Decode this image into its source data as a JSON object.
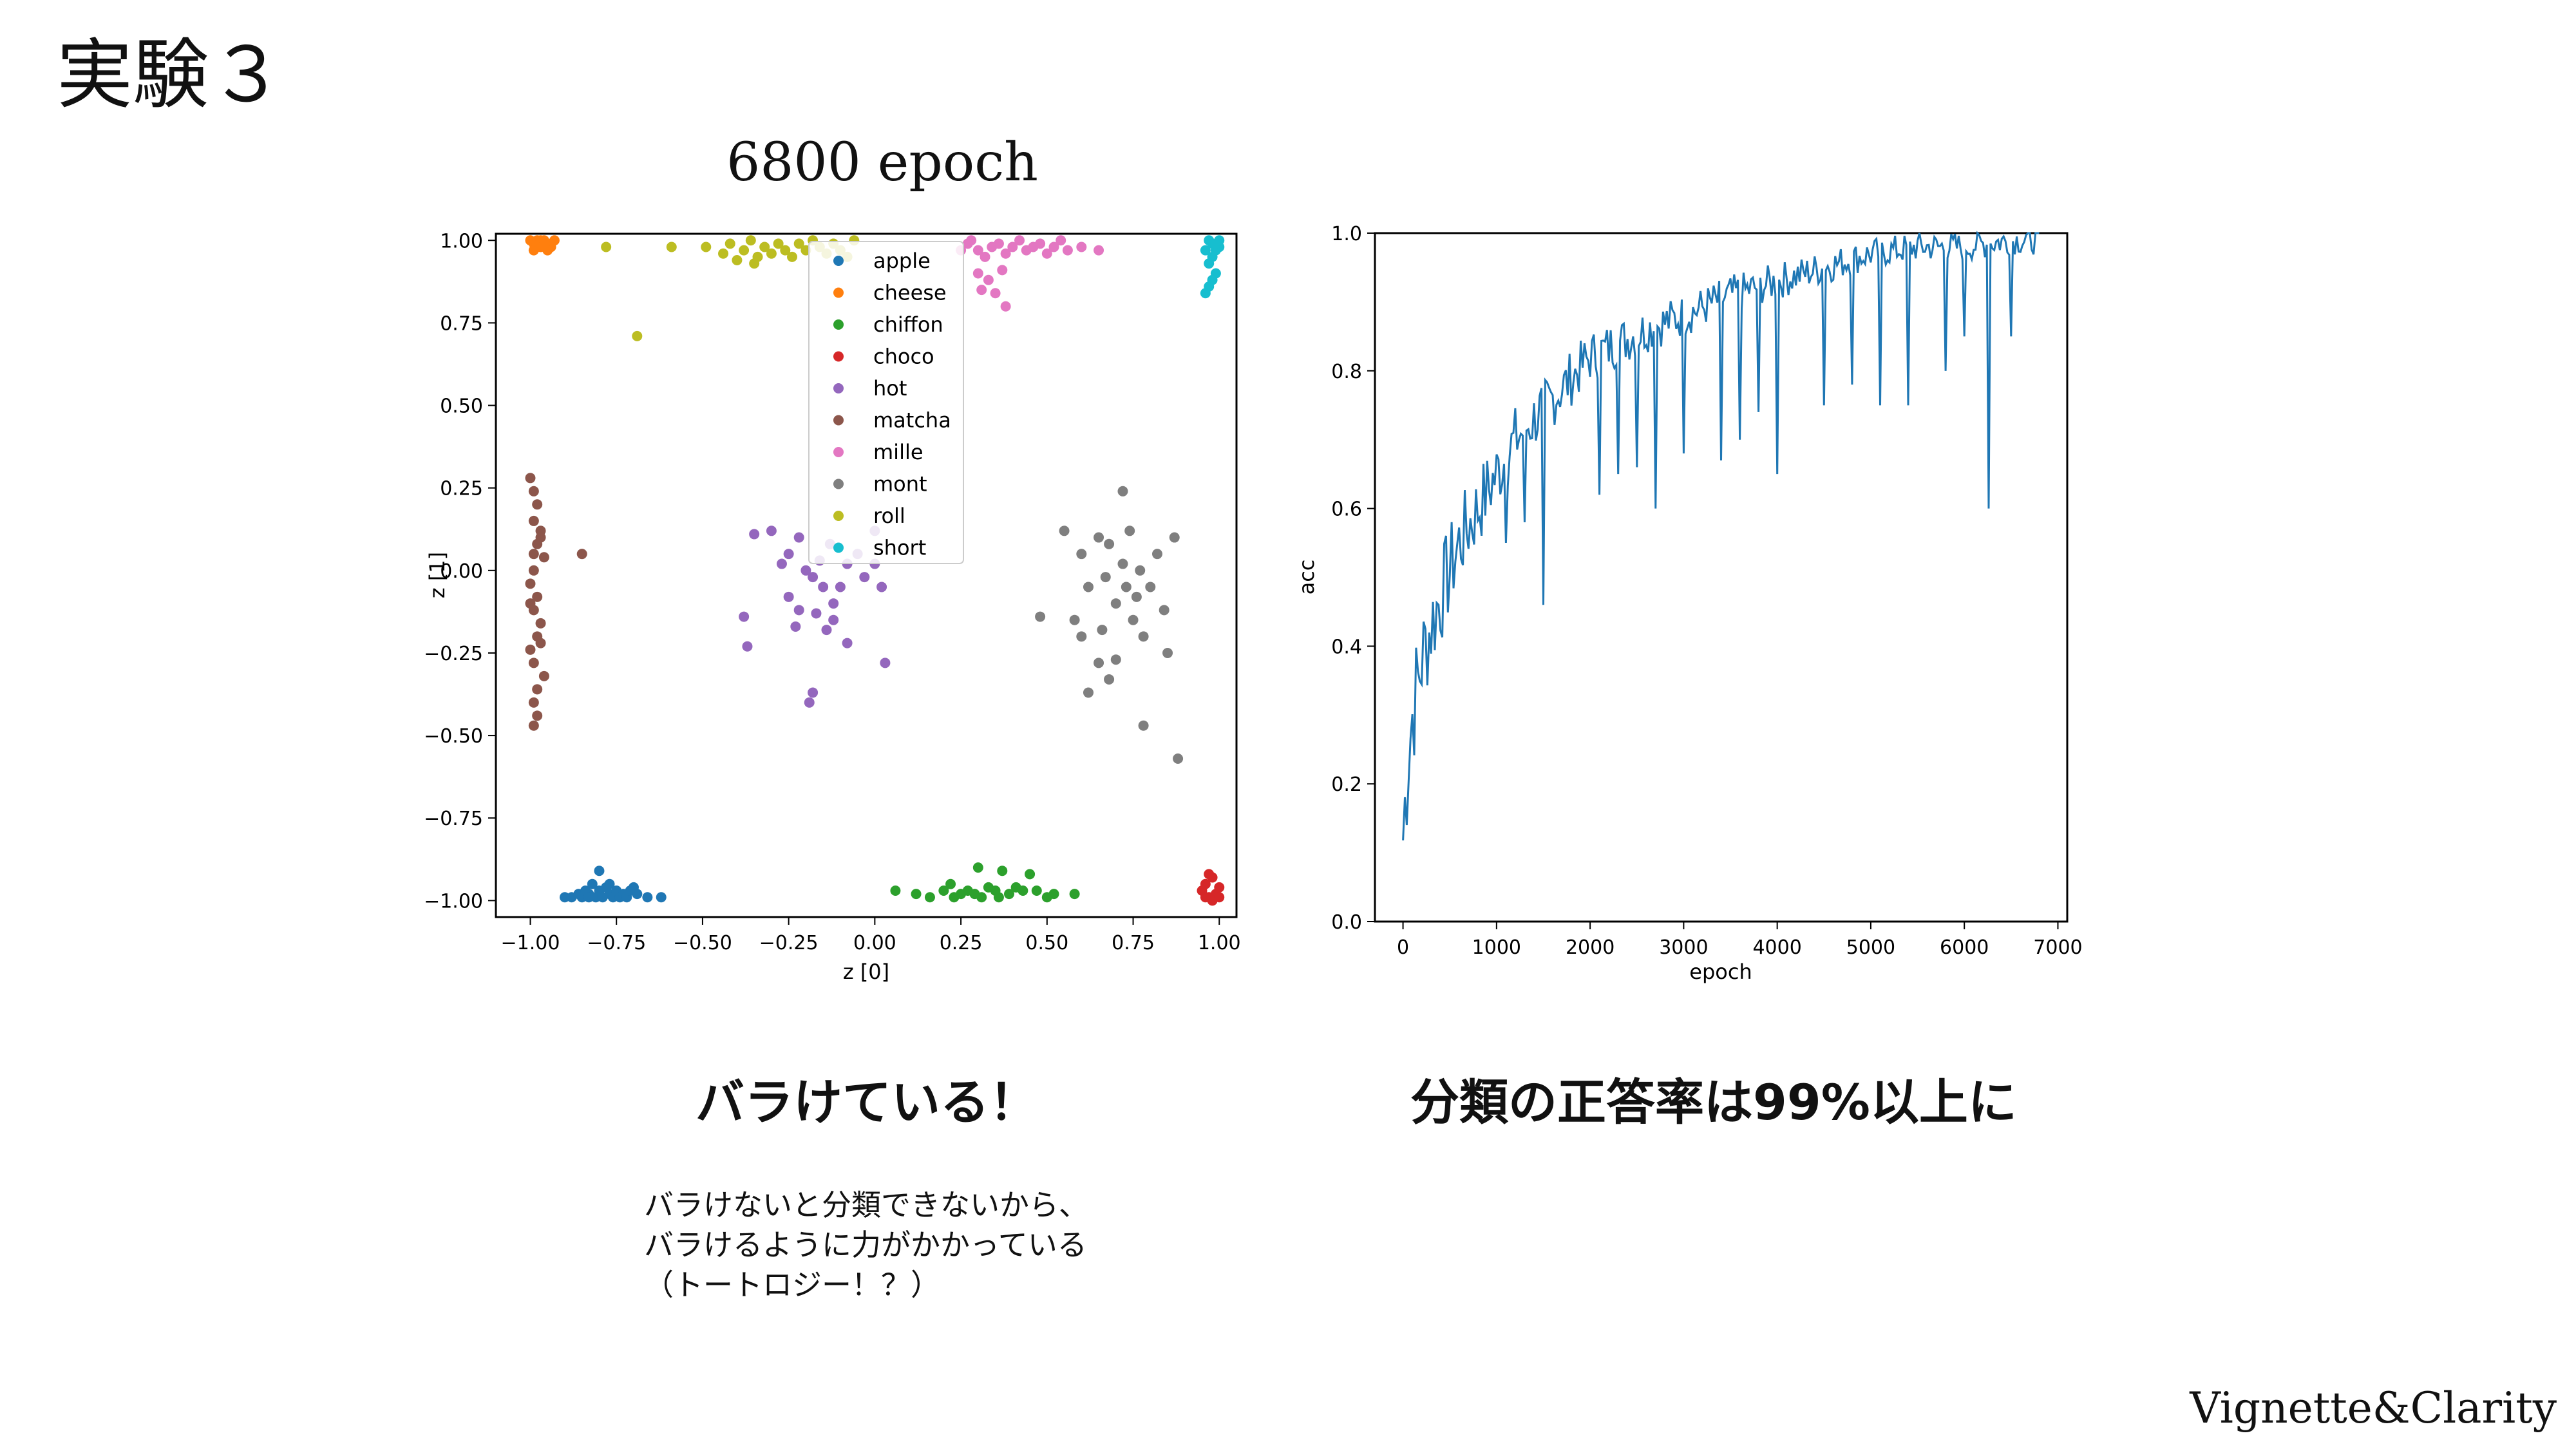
{
  "slide": {
    "title": "実験３",
    "subtitle": "6800 epoch",
    "caption_left": "バラけている！",
    "caption_right": "分類の正答率は99%以上に",
    "note_lines": [
      "バラけないと分類できないから、",
      "バラけるように力がかかっている",
      "（トートロジー！？）"
    ],
    "brand": "Vignette&Clarity"
  },
  "chart_data": [
    {
      "type": "scatter",
      "title": "",
      "xlabel": "z [0]",
      "ylabel": "z [1]",
      "xlim": [
        -1.1,
        1.05
      ],
      "ylim": [
        -1.05,
        1.02
      ],
      "xticks": [
        "−1.00",
        "−0.75",
        "−0.50",
        "−0.25",
        "0.00",
        "0.25",
        "0.50",
        "0.75",
        "1.00"
      ],
      "yticks": [
        "−1.00",
        "−0.75",
        "−0.50",
        "−0.25",
        "0.00",
        "0.25",
        "0.50",
        "0.75",
        "1.00"
      ],
      "legend_position": "top-center",
      "series": [
        {
          "name": "apple",
          "color": "#1f77b4",
          "points": [
            [
              -0.9,
              -0.99
            ],
            [
              -0.88,
              -0.99
            ],
            [
              -0.86,
              -0.98
            ],
            [
              -0.85,
              -0.99
            ],
            [
              -0.84,
              -0.97
            ],
            [
              -0.83,
              -0.98
            ],
            [
              -0.82,
              -0.95
            ],
            [
              -0.81,
              -0.99
            ],
            [
              -0.8,
              -0.97
            ],
            [
              -0.8,
              -0.91
            ],
            [
              -0.79,
              -0.99
            ],
            [
              -0.78,
              -0.96
            ],
            [
              -0.77,
              -0.98
            ],
            [
              -0.76,
              -0.99
            ],
            [
              -0.75,
              -0.97
            ],
            [
              -0.74,
              -0.99
            ],
            [
              -0.73,
              -0.98
            ],
            [
              -0.72,
              -0.99
            ],
            [
              -0.71,
              -0.97
            ],
            [
              -0.7,
              -0.96
            ],
            [
              -0.69,
              -0.98
            ],
            [
              -0.66,
              -0.99
            ],
            [
              -0.62,
              -0.99
            ],
            [
              -0.83,
              -0.99
            ],
            [
              -0.77,
              -0.95
            ]
          ]
        },
        {
          "name": "cheese",
          "color": "#ff7f0e",
          "points": [
            [
              -1.0,
              1.0
            ],
            [
              -0.99,
              0.99
            ],
            [
              -0.98,
              1.0
            ],
            [
              -0.97,
              0.98
            ],
            [
              -0.96,
              1.0
            ],
            [
              -0.95,
              0.99
            ],
            [
              -0.94,
              0.98
            ],
            [
              -0.99,
              0.97
            ],
            [
              -0.97,
              1.0
            ],
            [
              -0.95,
              0.97
            ],
            [
              -0.93,
              1.0
            ],
            [
              -0.98,
              0.98
            ]
          ]
        },
        {
          "name": "chiffon",
          "color": "#2ca02c",
          "points": [
            [
              0.06,
              -0.97
            ],
            [
              0.12,
              -0.98
            ],
            [
              0.16,
              -0.99
            ],
            [
              0.2,
              -0.97
            ],
            [
              0.22,
              -0.95
            ],
            [
              0.25,
              -0.98
            ],
            [
              0.27,
              -0.97
            ],
            [
              0.29,
              -0.98
            ],
            [
              0.31,
              -0.99
            ],
            [
              0.3,
              -0.9
            ],
            [
              0.33,
              -0.96
            ],
            [
              0.35,
              -0.97
            ],
            [
              0.37,
              -0.91
            ],
            [
              0.39,
              -0.98
            ],
            [
              0.41,
              -0.96
            ],
            [
              0.43,
              -0.97
            ],
            [
              0.45,
              -0.92
            ],
            [
              0.47,
              -0.97
            ],
            [
              0.5,
              -0.99
            ],
            [
              0.52,
              -0.98
            ],
            [
              0.58,
              -0.98
            ],
            [
              0.23,
              -0.99
            ],
            [
              0.36,
              -0.99
            ]
          ]
        },
        {
          "name": "choco",
          "color": "#d62728",
          "points": [
            [
              0.95,
              -0.97
            ],
            [
              0.96,
              -0.95
            ],
            [
              0.97,
              -0.99
            ],
            [
              0.98,
              -0.93
            ],
            [
              0.99,
              -0.98
            ],
            [
              1.0,
              -0.96
            ],
            [
              0.97,
              -0.92
            ],
            [
              0.98,
              -1.0
            ],
            [
              0.96,
              -0.99
            ],
            [
              1.0,
              -0.99
            ]
          ]
        },
        {
          "name": "hot",
          "color": "#9467bd",
          "points": [
            [
              -0.35,
              0.11
            ],
            [
              -0.3,
              0.12
            ],
            [
              -0.25,
              0.05
            ],
            [
              -0.27,
              0.02
            ],
            [
              -0.22,
              0.1
            ],
            [
              -0.2,
              0.0
            ],
            [
              -0.18,
              -0.02
            ],
            [
              -0.16,
              0.03
            ],
            [
              -0.15,
              -0.05
            ],
            [
              -0.13,
              0.08
            ],
            [
              -0.12,
              -0.1
            ],
            [
              -0.1,
              -0.05
            ],
            [
              -0.08,
              0.02
            ],
            [
              -0.05,
              0.05
            ],
            [
              -0.03,
              -0.02
            ],
            [
              0.02,
              -0.05
            ],
            [
              0.0,
              0.02
            ],
            [
              -0.38,
              -0.14
            ],
            [
              -0.37,
              -0.23
            ],
            [
              -0.23,
              -0.17
            ],
            [
              -0.18,
              -0.37
            ],
            [
              -0.19,
              -0.4
            ],
            [
              -0.08,
              -0.22
            ],
            [
              0.03,
              -0.28
            ],
            [
              -0.25,
              -0.08
            ],
            [
              -0.17,
              -0.13
            ],
            [
              -0.14,
              -0.18
            ],
            [
              0.0,
              0.12
            ],
            [
              -0.22,
              -0.12
            ],
            [
              -0.12,
              -0.15
            ]
          ]
        },
        {
          "name": "matcha",
          "color": "#8c564b",
          "points": [
            [
              -1.0,
              0.28
            ],
            [
              -0.99,
              0.24
            ],
            [
              -0.98,
              0.2
            ],
            [
              -0.99,
              0.15
            ],
            [
              -0.97,
              0.12
            ],
            [
              -0.98,
              0.08
            ],
            [
              -0.96,
              0.04
            ],
            [
              -0.99,
              0.0
            ],
            [
              -1.0,
              -0.04
            ],
            [
              -0.98,
              -0.08
            ],
            [
              -0.99,
              -0.12
            ],
            [
              -0.97,
              -0.16
            ],
            [
              -0.98,
              -0.2
            ],
            [
              -1.0,
              -0.24
            ],
            [
              -0.99,
              -0.28
            ],
            [
              -0.96,
              -0.32
            ],
            [
              -0.98,
              -0.36
            ],
            [
              -0.99,
              -0.4
            ],
            [
              -0.98,
              -0.44
            ],
            [
              -0.99,
              -0.47
            ],
            [
              -0.97,
              -0.22
            ],
            [
              -1.0,
              -0.1
            ],
            [
              -0.99,
              0.05
            ],
            [
              -0.97,
              0.1
            ],
            [
              -0.85,
              0.05
            ]
          ]
        },
        {
          "name": "mille",
          "color": "#e377c2",
          "points": [
            [
              0.25,
              0.97
            ],
            [
              0.28,
              1.0
            ],
            [
              0.3,
              0.97
            ],
            [
              0.32,
              0.95
            ],
            [
              0.34,
              0.98
            ],
            [
              0.36,
              0.99
            ],
            [
              0.38,
              0.96
            ],
            [
              0.4,
              0.98
            ],
            [
              0.42,
              1.0
            ],
            [
              0.44,
              0.97
            ],
            [
              0.46,
              0.98
            ],
            [
              0.48,
              0.99
            ],
            [
              0.5,
              0.96
            ],
            [
              0.52,
              0.98
            ],
            [
              0.54,
              1.0
            ],
            [
              0.56,
              0.97
            ],
            [
              0.3,
              0.9
            ],
            [
              0.31,
              0.85
            ],
            [
              0.35,
              0.84
            ],
            [
              0.37,
              0.91
            ],
            [
              0.38,
              0.8
            ],
            [
              0.6,
              0.98
            ],
            [
              0.65,
              0.97
            ],
            [
              0.33,
              0.88
            ],
            [
              0.27,
              0.99
            ]
          ]
        },
        {
          "name": "mont",
          "color": "#7f7f7f",
          "points": [
            [
              0.55,
              0.12
            ],
            [
              0.6,
              0.05
            ],
            [
              0.62,
              -0.05
            ],
            [
              0.65,
              0.1
            ],
            [
              0.67,
              -0.02
            ],
            [
              0.68,
              0.08
            ],
            [
              0.7,
              -0.1
            ],
            [
              0.72,
              0.02
            ],
            [
              0.74,
              0.12
            ],
            [
              0.75,
              -0.15
            ],
            [
              0.77,
              0.0
            ],
            [
              0.78,
              -0.2
            ],
            [
              0.8,
              -0.05
            ],
            [
              0.82,
              0.05
            ],
            [
              0.84,
              -0.12
            ],
            [
              0.85,
              -0.25
            ],
            [
              0.87,
              0.1
            ],
            [
              0.65,
              -0.28
            ],
            [
              0.68,
              -0.33
            ],
            [
              0.62,
              -0.37
            ],
            [
              0.6,
              -0.2
            ],
            [
              0.58,
              -0.15
            ],
            [
              0.72,
              0.24
            ],
            [
              0.78,
              -0.47
            ],
            [
              0.88,
              -0.57
            ],
            [
              0.48,
              -0.14
            ],
            [
              0.7,
              -0.27
            ],
            [
              0.76,
              -0.08
            ],
            [
              0.66,
              -0.18
            ],
            [
              0.73,
              -0.05
            ]
          ]
        },
        {
          "name": "roll",
          "color": "#bcbd22",
          "points": [
            [
              -0.78,
              0.98
            ],
            [
              -0.59,
              0.98
            ],
            [
              -0.49,
              0.98
            ],
            [
              -0.44,
              0.96
            ],
            [
              -0.42,
              0.99
            ],
            [
              -0.4,
              0.94
            ],
            [
              -0.38,
              0.97
            ],
            [
              -0.36,
              1.0
            ],
            [
              -0.34,
              0.95
            ],
            [
              -0.32,
              0.98
            ],
            [
              -0.3,
              0.96
            ],
            [
              -0.28,
              0.99
            ],
            [
              -0.26,
              0.97
            ],
            [
              -0.24,
              0.95
            ],
            [
              -0.22,
              0.99
            ],
            [
              -0.2,
              0.97
            ],
            [
              -0.18,
              1.0
            ],
            [
              -0.16,
              0.98
            ],
            [
              -0.14,
              0.96
            ],
            [
              -0.12,
              0.99
            ],
            [
              -0.1,
              0.97
            ],
            [
              -0.08,
              0.95
            ],
            [
              -0.06,
              1.0
            ],
            [
              -0.69,
              0.71
            ],
            [
              -0.35,
              0.93
            ]
          ]
        },
        {
          "name": "short",
          "color": "#17becf",
          "points": [
            [
              0.97,
              1.0
            ],
            [
              0.98,
              0.99
            ],
            [
              0.99,
              0.97
            ],
            [
              1.0,
              0.98
            ],
            [
              0.98,
              0.95
            ],
            [
              0.97,
              0.93
            ],
            [
              0.99,
              0.9
            ],
            [
              0.98,
              0.88
            ],
            [
              0.97,
              0.86
            ],
            [
              0.96,
              0.84
            ],
            [
              0.99,
              0.99
            ],
            [
              1.0,
              1.0
            ],
            [
              0.96,
              0.97
            ]
          ]
        }
      ]
    },
    {
      "type": "line",
      "title": "",
      "xlabel": "epoch",
      "ylabel": "acc",
      "xlim": [
        -300,
        7100
      ],
      "ylim": [
        0.0,
        1.0
      ],
      "xticks": [
        0,
        1000,
        2000,
        3000,
        4000,
        5000,
        6000,
        7000
      ],
      "yticks": [
        "0.0",
        "0.2",
        "0.4",
        "0.6",
        "0.8",
        "1.0"
      ],
      "color": "#1f77b4",
      "series": [
        {
          "x": [
            0,
            50,
            100,
            200,
            300,
            400,
            500,
            600,
            800,
            1000,
            1200,
            1400,
            1600,
            1800,
            2000,
            2300,
            2600,
            3000,
            3500,
            4000,
            4500,
            5000,
            5500,
            6000,
            6500,
            6800
          ],
          "y": [
            0.12,
            0.24,
            0.3,
            0.38,
            0.43,
            0.47,
            0.51,
            0.55,
            0.6,
            0.65,
            0.7,
            0.73,
            0.76,
            0.79,
            0.82,
            0.84,
            0.86,
            0.88,
            0.91,
            0.93,
            0.95,
            0.97,
            0.98,
            0.98,
            0.99,
            0.99
          ],
          "dips": [
            [
              1100,
              0.55
            ],
            [
              1300,
              0.58
            ],
            [
              1500,
              0.46
            ],
            [
              2100,
              0.62
            ],
            [
              2300,
              0.65
            ],
            [
              2500,
              0.66
            ],
            [
              2700,
              0.6
            ],
            [
              3000,
              0.68
            ],
            [
              3400,
              0.67
            ],
            [
              3600,
              0.7
            ],
            [
              3800,
              0.74
            ],
            [
              4000,
              0.65
            ],
            [
              4500,
              0.75
            ],
            [
              4800,
              0.78
            ],
            [
              5100,
              0.75
            ],
            [
              5400,
              0.75
            ],
            [
              5800,
              0.8
            ],
            [
              6000,
              0.85
            ],
            [
              6250,
              0.6
            ],
            [
              6500,
              0.85
            ]
          ]
        }
      ]
    }
  ]
}
